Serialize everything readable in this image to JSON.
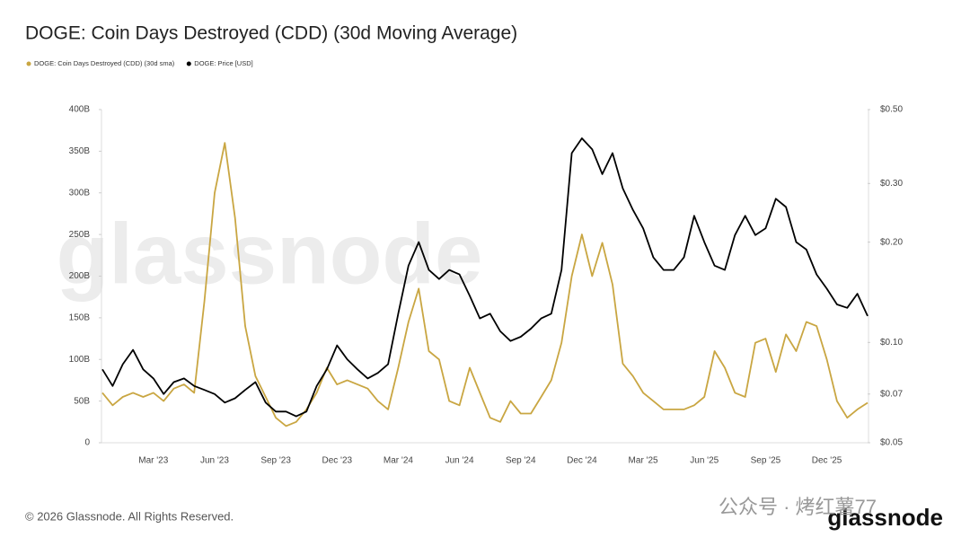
{
  "chart_data": {
    "type": "line",
    "title": "DOGE: Coin Days Destroyed (CDD) (30d Moving Average)",
    "watermark": "glassnode",
    "footer": "© 2026 Glassnode. All Rights Reserved.",
    "logo": "glassnode",
    "overlay_text": "公众号 · 烤红薯77",
    "categories": [
      null,
      null,
      null,
      null,
      null,
      "Mar '23",
      null,
      null,
      null,
      null,
      null,
      "Jun '23",
      null,
      null,
      null,
      null,
      null,
      "Sep '23",
      null,
      null,
      null,
      null,
      null,
      "Dec '23",
      null,
      null,
      null,
      null,
      null,
      "Mar '24",
      null,
      null,
      null,
      null,
      null,
      "Jun '24",
      null,
      null,
      null,
      null,
      null,
      "Sep '24",
      null,
      null,
      null,
      null,
      null,
      "Dec '24",
      null,
      null,
      null,
      null,
      null,
      "Mar '25",
      null,
      null,
      null,
      null,
      null,
      "Jun '25",
      null,
      null,
      null,
      null,
      null,
      "Sep '25",
      null,
      null,
      null,
      null,
      null,
      "Dec '25",
      null,
      null,
      null,
      null
    ],
    "series": [
      {
        "name": "DOGE: Coin Days Destroyed (CDD) (30d sma)",
        "color": "#c9a642",
        "axis": "y",
        "values": [
          60,
          45,
          55,
          60,
          55,
          60,
          50,
          65,
          70,
          60,
          170,
          300,
          360,
          270,
          140,
          80,
          55,
          30,
          20,
          25,
          40,
          60,
          90,
          70,
          75,
          70,
          65,
          50,
          40,
          90,
          145,
          185,
          110,
          100,
          50,
          45,
          90,
          60,
          30,
          25,
          50,
          35,
          35,
          55,
          75,
          120,
          200,
          250,
          200,
          240,
          190,
          95,
          80,
          60,
          50,
          40,
          40,
          40,
          45,
          55,
          110,
          90,
          60,
          55,
          120,
          125,
          85,
          130,
          110,
          145,
          140,
          100,
          50,
          30,
          40,
          48
        ]
      },
      {
        "name": "DOGE: Price [USD]",
        "color": "#000000",
        "axis": "y2",
        "values": [
          0.083,
          0.074,
          0.086,
          0.095,
          0.083,
          0.078,
          0.07,
          0.076,
          0.078,
          0.074,
          0.072,
          0.07,
          0.066,
          0.068,
          0.072,
          0.076,
          0.066,
          0.062,
          0.062,
          0.06,
          0.062,
          0.074,
          0.083,
          0.098,
          0.089,
          0.083,
          0.078,
          0.081,
          0.086,
          0.122,
          0.17,
          0.2,
          0.165,
          0.155,
          0.165,
          0.16,
          0.138,
          0.118,
          0.122,
          0.108,
          0.101,
          0.104,
          0.11,
          0.118,
          0.122,
          0.165,
          0.37,
          0.41,
          0.38,
          0.32,
          0.37,
          0.29,
          0.25,
          0.22,
          0.18,
          0.165,
          0.165,
          0.18,
          0.24,
          0.2,
          0.17,
          0.165,
          0.21,
          0.24,
          0.21,
          0.22,
          0.27,
          0.255,
          0.2,
          0.19,
          0.16,
          0.145,
          0.13,
          0.127,
          0.14,
          0.12
        ]
      }
    ],
    "ylim": [
      0,
      400
    ],
    "yticks": [
      0,
      {
        "value": 50,
        "label": "50B"
      },
      {
        "value": 100,
        "label": "100B"
      },
      {
        "value": 150,
        "label": "150B"
      },
      {
        "value": 200,
        "label": "200B"
      },
      {
        "value": 250,
        "label": "250B"
      },
      {
        "value": 300,
        "label": "300B"
      },
      {
        "value": 350,
        "label": "350B"
      },
      {
        "value": 400,
        "label": "400B"
      }
    ],
    "y2lim": [
      0.05,
      0.5
    ],
    "y2scale": "log",
    "y2ticks": [
      {
        "value": 0.05,
        "label": "$0.05"
      },
      {
        "value": 0.07,
        "label": "$0.07"
      },
      {
        "value": 0.1,
        "label": "$0.10"
      },
      {
        "value": 0.2,
        "label": "$0.20"
      },
      {
        "value": 0.3,
        "label": "$0.30"
      },
      {
        "value": 0.5,
        "label": "$0.50"
      }
    ],
    "grid": false
  }
}
